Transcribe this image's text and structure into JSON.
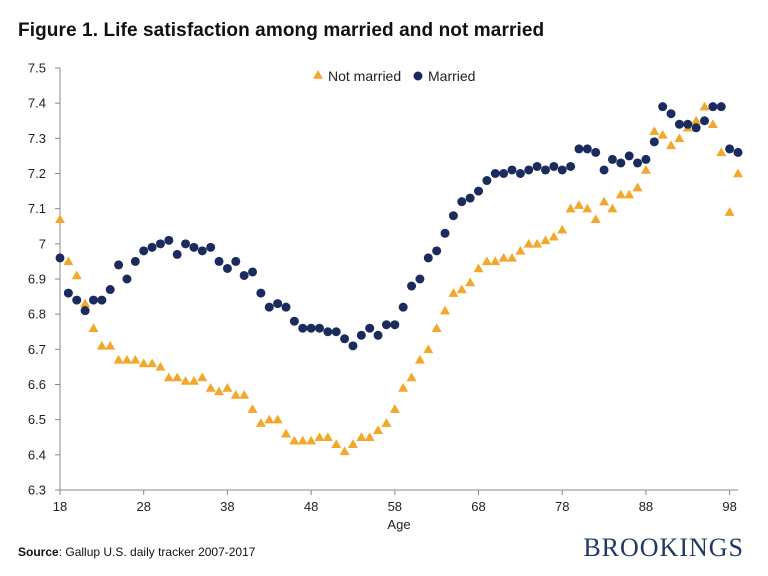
{
  "title": "Figure 1. Life satisfaction among married and not married",
  "source_label": "Source",
  "source_text": ": Gallup U.S. daily tracker 2007-2017",
  "brand": "BROOKINGS",
  "colors": {
    "not_married": "#F2A82C",
    "married": "#1C2B5E",
    "axis": "#888888"
  },
  "chart_data": {
    "type": "scatter",
    "xlabel": "Age",
    "ylabel": "",
    "xlim": [
      18,
      99
    ],
    "ylim": [
      6.3,
      7.5
    ],
    "xticks": [
      18,
      28,
      38,
      48,
      58,
      68,
      78,
      88,
      98
    ],
    "yticks": [
      6.3,
      6.4,
      6.5,
      6.6,
      6.7,
      6.8,
      6.9,
      7,
      7.1,
      7.2,
      7.3,
      7.4,
      7.5
    ],
    "ytick_labels": [
      "6.3",
      "6.4",
      "6.5",
      "6.6",
      "6.7",
      "6.8",
      "6.9",
      "7",
      "7.1",
      "7.2",
      "7.3",
      "7.4",
      "7.5"
    ],
    "legend_position": "top-center",
    "series": [
      {
        "name": "Not married",
        "marker": "triangle",
        "x": [
          18,
          19,
          20,
          21,
          22,
          23,
          24,
          25,
          26,
          27,
          28,
          29,
          30,
          31,
          32,
          33,
          34,
          35,
          36,
          37,
          38,
          39,
          40,
          41,
          42,
          43,
          44,
          45,
          46,
          47,
          48,
          49,
          50,
          51,
          52,
          53,
          54,
          55,
          56,
          57,
          58,
          59,
          60,
          61,
          62,
          63,
          64,
          65,
          66,
          67,
          68,
          69,
          70,
          71,
          72,
          73,
          74,
          75,
          76,
          77,
          78,
          79,
          80,
          81,
          82,
          83,
          84,
          85,
          86,
          87,
          88,
          89,
          90,
          91,
          92,
          93,
          94,
          95,
          96,
          97,
          98,
          99
        ],
        "y": [
          7.07,
          6.95,
          6.91,
          6.83,
          6.76,
          6.71,
          6.71,
          6.67,
          6.67,
          6.67,
          6.66,
          6.66,
          6.65,
          6.62,
          6.62,
          6.61,
          6.61,
          6.62,
          6.59,
          6.58,
          6.59,
          6.57,
          6.57,
          6.53,
          6.49,
          6.5,
          6.5,
          6.46,
          6.44,
          6.44,
          6.44,
          6.45,
          6.45,
          6.43,
          6.41,
          6.43,
          6.45,
          6.45,
          6.47,
          6.49,
          6.53,
          6.59,
          6.62,
          6.67,
          6.7,
          6.76,
          6.81,
          6.86,
          6.87,
          6.89,
          6.93,
          6.95,
          6.95,
          6.96,
          6.96,
          6.98,
          7.0,
          7.0,
          7.01,
          7.02,
          7.04,
          7.1,
          7.11,
          7.1,
          7.07,
          7.12,
          7.1,
          7.14,
          7.14,
          7.16,
          7.21,
          7.32,
          7.31,
          7.28,
          7.3,
          7.33,
          7.35,
          7.39,
          7.34,
          7.26,
          7.09,
          7.2
        ]
      },
      {
        "name": "Married",
        "marker": "circle",
        "x": [
          18,
          19,
          20,
          21,
          22,
          23,
          24,
          25,
          26,
          27,
          28,
          29,
          30,
          31,
          32,
          33,
          34,
          35,
          36,
          37,
          38,
          39,
          40,
          41,
          42,
          43,
          44,
          45,
          46,
          47,
          48,
          49,
          50,
          51,
          52,
          53,
          54,
          55,
          56,
          57,
          58,
          59,
          60,
          61,
          62,
          63,
          64,
          65,
          66,
          67,
          68,
          69,
          70,
          71,
          72,
          73,
          74,
          75,
          76,
          77,
          78,
          79,
          80,
          81,
          82,
          83,
          84,
          85,
          86,
          87,
          88,
          89,
          90,
          91,
          92,
          93,
          94,
          95,
          96,
          97,
          98,
          99
        ],
        "y": [
          6.96,
          6.86,
          6.84,
          6.81,
          6.84,
          6.84,
          6.87,
          6.94,
          6.9,
          6.95,
          6.98,
          6.99,
          7.0,
          7.01,
          6.97,
          7.0,
          6.99,
          6.98,
          6.99,
          6.95,
          6.93,
          6.95,
          6.91,
          6.92,
          6.86,
          6.82,
          6.83,
          6.82,
          6.78,
          6.76,
          6.76,
          6.76,
          6.75,
          6.75,
          6.73,
          6.71,
          6.74,
          6.76,
          6.74,
          6.77,
          6.77,
          6.82,
          6.88,
          6.9,
          6.96,
          6.98,
          7.03,
          7.08,
          7.12,
          7.13,
          7.15,
          7.18,
          7.2,
          7.2,
          7.21,
          7.2,
          7.21,
          7.22,
          7.21,
          7.22,
          7.21,
          7.22,
          7.27,
          7.27,
          7.26,
          7.21,
          7.24,
          7.23,
          7.25,
          7.23,
          7.24,
          7.29,
          7.39,
          7.37,
          7.34,
          7.34,
          7.33,
          7.35,
          7.39,
          7.39,
          7.27,
          7.26
        ]
      }
    ]
  }
}
